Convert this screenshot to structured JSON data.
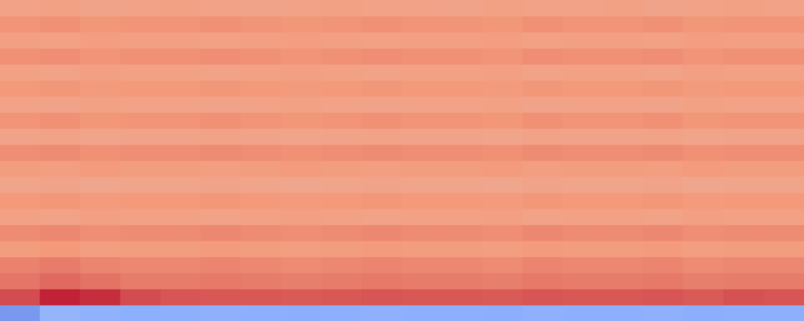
{
  "chart_data": {
    "type": "heatmap",
    "tick_labels": false,
    "color_range": [
      -1,
      1
    ],
    "cells": [
      [
        0.44,
        0.45,
        0.43,
        0.44,
        0.45,
        0.44,
        0.43,
        0.44,
        0.45,
        0.44,
        0.44,
        0.43,
        0.45,
        0.44,
        0.44,
        0.45,
        0.43,
        0.44,
        0.45,
        0.44
      ],
      [
        0.52,
        0.53,
        0.51,
        0.52,
        0.52,
        0.53,
        0.52,
        0.51,
        0.52,
        0.53,
        0.52,
        0.52,
        0.51,
        0.53,
        0.52,
        0.52,
        0.53,
        0.51,
        0.52,
        0.52
      ],
      [
        0.46,
        0.45,
        0.47,
        0.46,
        0.46,
        0.45,
        0.46,
        0.47,
        0.46,
        0.45,
        0.46,
        0.46,
        0.47,
        0.45,
        0.46,
        0.46,
        0.45,
        0.47,
        0.46,
        0.46
      ],
      [
        0.53,
        0.54,
        0.52,
        0.53,
        0.53,
        0.54,
        0.53,
        0.52,
        0.53,
        0.54,
        0.53,
        0.53,
        0.52,
        0.54,
        0.53,
        0.53,
        0.54,
        0.52,
        0.53,
        0.53
      ],
      [
        0.45,
        0.44,
        0.46,
        0.45,
        0.45,
        0.44,
        0.45,
        0.46,
        0.45,
        0.44,
        0.45,
        0.45,
        0.46,
        0.44,
        0.45,
        0.45,
        0.44,
        0.46,
        0.45,
        0.45
      ],
      [
        0.5,
        0.51,
        0.49,
        0.5,
        0.5,
        0.51,
        0.5,
        0.49,
        0.5,
        0.51,
        0.5,
        0.5,
        0.49,
        0.51,
        0.5,
        0.5,
        0.51,
        0.49,
        0.5,
        0.5
      ],
      [
        0.44,
        0.43,
        0.45,
        0.44,
        0.44,
        0.43,
        0.44,
        0.45,
        0.44,
        0.43,
        0.44,
        0.44,
        0.45,
        0.43,
        0.44,
        0.44,
        0.43,
        0.45,
        0.44,
        0.44
      ],
      [
        0.52,
        0.53,
        0.51,
        0.52,
        0.52,
        0.53,
        0.52,
        0.51,
        0.52,
        0.53,
        0.52,
        0.52,
        0.51,
        0.53,
        0.52,
        0.52,
        0.53,
        0.51,
        0.52,
        0.52
      ],
      [
        0.43,
        0.44,
        0.42,
        0.43,
        0.43,
        0.44,
        0.43,
        0.42,
        0.43,
        0.44,
        0.43,
        0.43,
        0.42,
        0.44,
        0.43,
        0.43,
        0.44,
        0.42,
        0.43,
        0.43
      ],
      [
        0.54,
        0.55,
        0.53,
        0.54,
        0.54,
        0.55,
        0.54,
        0.53,
        0.54,
        0.55,
        0.54,
        0.54,
        0.53,
        0.55,
        0.54,
        0.54,
        0.55,
        0.53,
        0.54,
        0.54
      ],
      [
        0.48,
        0.47,
        0.49,
        0.48,
        0.48,
        0.47,
        0.48,
        0.49,
        0.48,
        0.47,
        0.48,
        0.48,
        0.49,
        0.47,
        0.48,
        0.48,
        0.47,
        0.49,
        0.48,
        0.48
      ],
      [
        0.42,
        0.43,
        0.41,
        0.42,
        0.42,
        0.43,
        0.42,
        0.41,
        0.42,
        0.43,
        0.42,
        0.42,
        0.41,
        0.43,
        0.42,
        0.42,
        0.43,
        0.41,
        0.42,
        0.42
      ],
      [
        0.5,
        0.51,
        0.49,
        0.5,
        0.5,
        0.51,
        0.5,
        0.49,
        0.5,
        0.51,
        0.5,
        0.5,
        0.49,
        0.51,
        0.5,
        0.5,
        0.51,
        0.49,
        0.5,
        0.5
      ],
      [
        0.45,
        0.44,
        0.46,
        0.45,
        0.45,
        0.44,
        0.45,
        0.46,
        0.45,
        0.44,
        0.45,
        0.45,
        0.46,
        0.44,
        0.45,
        0.45,
        0.44,
        0.46,
        0.45,
        0.45
      ],
      [
        0.55,
        0.56,
        0.54,
        0.55,
        0.55,
        0.56,
        0.55,
        0.54,
        0.55,
        0.56,
        0.55,
        0.55,
        0.54,
        0.56,
        0.55,
        0.55,
        0.56,
        0.54,
        0.55,
        0.55
      ],
      [
        0.48,
        0.5,
        0.47,
        0.48,
        0.48,
        0.49,
        0.48,
        0.47,
        0.48,
        0.49,
        0.48,
        0.48,
        0.47,
        0.49,
        0.48,
        0.48,
        0.49,
        0.47,
        0.48,
        0.48
      ],
      [
        0.58,
        0.6,
        0.57,
        0.56,
        0.56,
        0.57,
        0.56,
        0.55,
        0.56,
        0.57,
        0.56,
        0.56,
        0.55,
        0.57,
        0.56,
        0.56,
        0.57,
        0.55,
        0.56,
        0.56
      ],
      [
        0.62,
        0.66,
        0.63,
        0.6,
        0.6,
        0.61,
        0.6,
        0.59,
        0.6,
        0.61,
        0.6,
        0.6,
        0.59,
        0.61,
        0.6,
        0.6,
        0.61,
        0.59,
        0.6,
        0.6
      ],
      [
        0.76,
        0.9,
        0.86,
        0.76,
        0.73,
        0.72,
        0.72,
        0.71,
        0.72,
        0.73,
        0.72,
        0.72,
        0.71,
        0.73,
        0.72,
        0.72,
        0.73,
        0.71,
        0.74,
        0.73
      ],
      [
        -0.62,
        -0.45,
        -0.48,
        -0.5,
        -0.5,
        -0.49,
        -0.5,
        -0.51,
        -0.5,
        -0.49,
        -0.5,
        -0.5,
        -0.51,
        -0.49,
        -0.5,
        -0.5,
        -0.49,
        -0.51,
        -0.5,
        -0.5
      ]
    ]
  }
}
